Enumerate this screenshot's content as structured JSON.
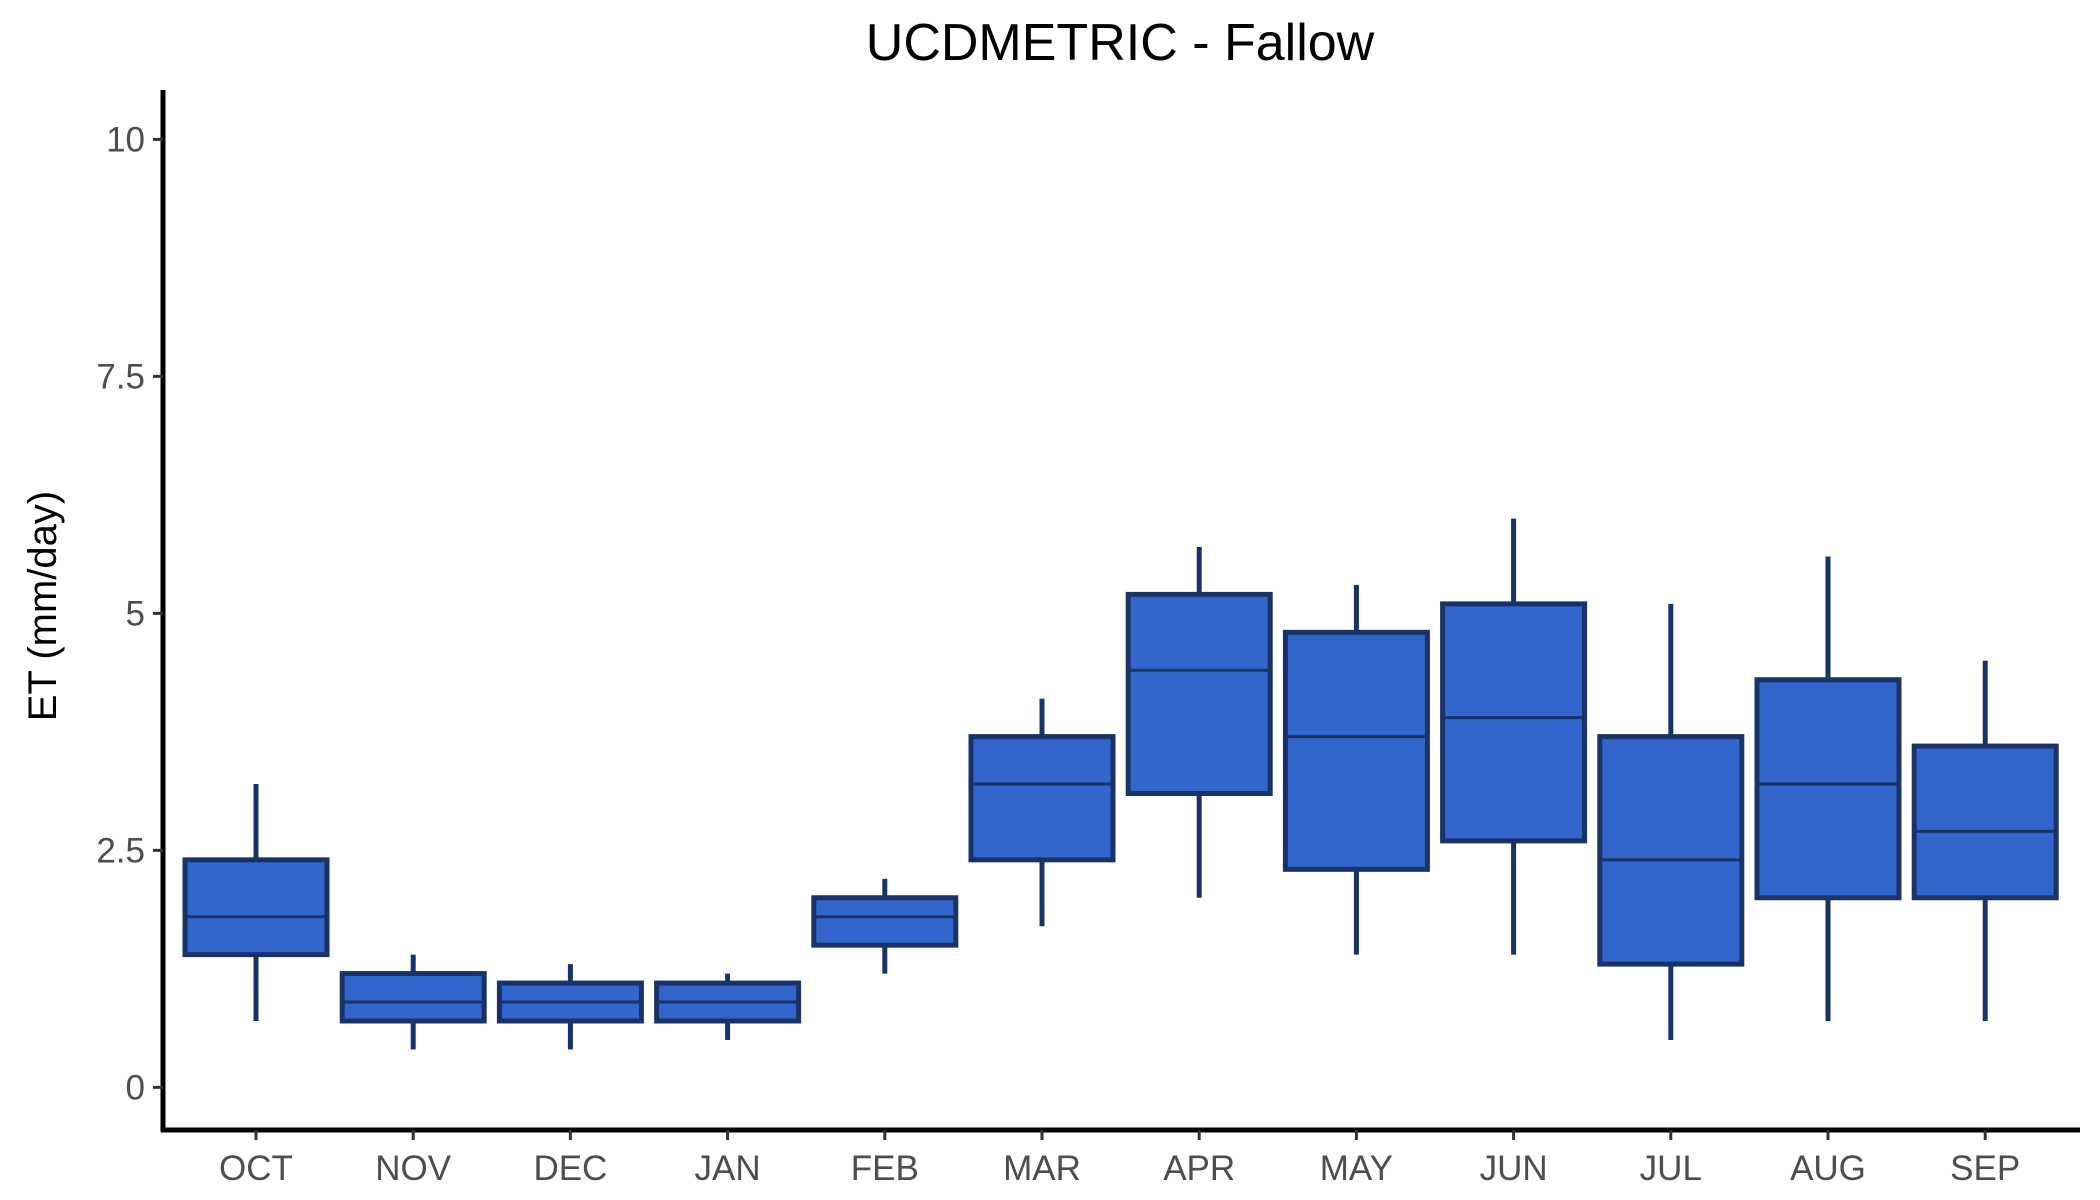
{
  "chart_data": {
    "type": "boxplot",
    "title": "UCDMETRIC - Fallow",
    "xlabel": "",
    "ylabel": "ET (mm/day)",
    "ylim": [
      -0.45,
      10.5
    ],
    "yticks": [
      0,
      2.5,
      5,
      7.5,
      10
    ],
    "ytick_labels": [
      "0",
      "2.5",
      "5",
      "7.5",
      "10"
    ],
    "grid": false,
    "legend": "none",
    "box_fill": "#3366cc",
    "box_stroke": "#1a3366",
    "categories": [
      "OCT",
      "NOV",
      "DEC",
      "JAN",
      "FEB",
      "MAR",
      "APR",
      "MAY",
      "JUN",
      "JUL",
      "AUG",
      "SEP"
    ],
    "boxes": [
      {
        "label": "OCT",
        "min": 0.7,
        "q1": 1.4,
        "median": 1.8,
        "q3": 2.4,
        "max": 3.2
      },
      {
        "label": "NOV",
        "min": 0.4,
        "q1": 0.7,
        "median": 0.9,
        "q3": 1.2,
        "max": 1.4
      },
      {
        "label": "DEC",
        "min": 0.4,
        "q1": 0.7,
        "median": 0.9,
        "q3": 1.1,
        "max": 1.3
      },
      {
        "label": "JAN",
        "min": 0.5,
        "q1": 0.7,
        "median": 0.9,
        "q3": 1.1,
        "max": 1.2
      },
      {
        "label": "FEB",
        "min": 1.2,
        "q1": 1.5,
        "median": 1.8,
        "q3": 2.0,
        "max": 2.2
      },
      {
        "label": "MAR",
        "min": 1.7,
        "q1": 2.4,
        "median": 3.2,
        "q3": 3.7,
        "max": 4.1
      },
      {
        "label": "APR",
        "min": 2.0,
        "q1": 3.1,
        "median": 4.4,
        "q3": 5.2,
        "max": 5.7
      },
      {
        "label": "MAY",
        "min": 1.4,
        "q1": 2.3,
        "median": 3.7,
        "q3": 4.8,
        "max": 5.3
      },
      {
        "label": "JUN",
        "min": 1.4,
        "q1": 2.6,
        "median": 3.9,
        "q3": 5.1,
        "max": 6.0
      },
      {
        "label": "JUL",
        "min": 0.5,
        "q1": 1.3,
        "median": 2.4,
        "q3": 3.7,
        "max": 5.1
      },
      {
        "label": "AUG",
        "min": 0.7,
        "q1": 2.0,
        "median": 3.2,
        "q3": 4.3,
        "max": 5.6
      },
      {
        "label": "SEP",
        "min": 0.7,
        "q1": 2.0,
        "median": 2.7,
        "q3": 3.6,
        "max": 4.5
      }
    ]
  }
}
